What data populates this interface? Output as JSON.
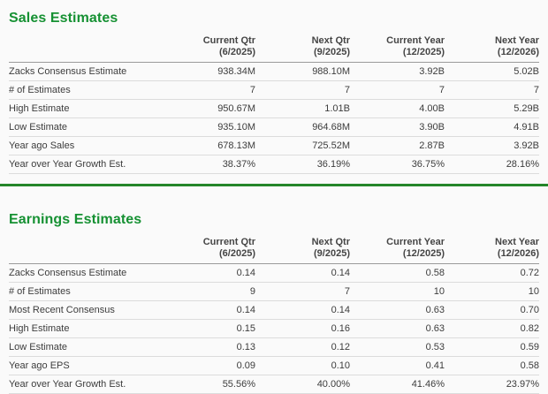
{
  "page": {
    "background_color": "#fafafa",
    "title_green": "#169133",
    "divider_green": "#25862a"
  },
  "columns": [
    {
      "label": "Current Qtr",
      "period": "(6/2025)"
    },
    {
      "label": "Next Qtr",
      "period": "(9/2025)"
    },
    {
      "label": "Current Year",
      "period": "(12/2025)"
    },
    {
      "label": "Next Year",
      "period": "(12/2026)"
    }
  ],
  "sales": {
    "title": "Sales Estimates",
    "rows": [
      {
        "label": "Zacks Consensus Estimate",
        "values": [
          "938.34M",
          "988.10M",
          "3.92B",
          "5.02B"
        ]
      },
      {
        "label": "# of Estimates",
        "values": [
          "7",
          "7",
          "7",
          "7"
        ]
      },
      {
        "label": "High Estimate",
        "values": [
          "950.67M",
          "1.01B",
          "4.00B",
          "5.29B"
        ]
      },
      {
        "label": "Low Estimate",
        "values": [
          "935.10M",
          "964.68M",
          "3.90B",
          "4.91B"
        ]
      },
      {
        "label": "Year ago Sales",
        "values": [
          "678.13M",
          "725.52M",
          "2.87B",
          "3.92B"
        ]
      },
      {
        "label": "Year over Year Growth Est.",
        "values": [
          "38.37%",
          "36.19%",
          "36.75%",
          "28.16%"
        ]
      }
    ]
  },
  "earnings": {
    "title": "Earnings Estimates",
    "rows": [
      {
        "label": "Zacks Consensus Estimate",
        "values": [
          "0.14",
          "0.14",
          "0.58",
          "0.72"
        ]
      },
      {
        "label": "# of Estimates",
        "values": [
          "9",
          "7",
          "10",
          "10"
        ]
      },
      {
        "label": "Most Recent Consensus",
        "values": [
          "0.14",
          "0.14",
          "0.63",
          "0.70"
        ]
      },
      {
        "label": "High Estimate",
        "values": [
          "0.15",
          "0.16",
          "0.63",
          "0.82"
        ]
      },
      {
        "label": "Low Estimate",
        "values": [
          "0.13",
          "0.12",
          "0.53",
          "0.59"
        ]
      },
      {
        "label": "Year ago EPS",
        "values": [
          "0.09",
          "0.10",
          "0.41",
          "0.58"
        ]
      },
      {
        "label": "Year over Year Growth Est.",
        "values": [
          "55.56%",
          "40.00%",
          "41.46%",
          "23.97%"
        ]
      }
    ]
  }
}
